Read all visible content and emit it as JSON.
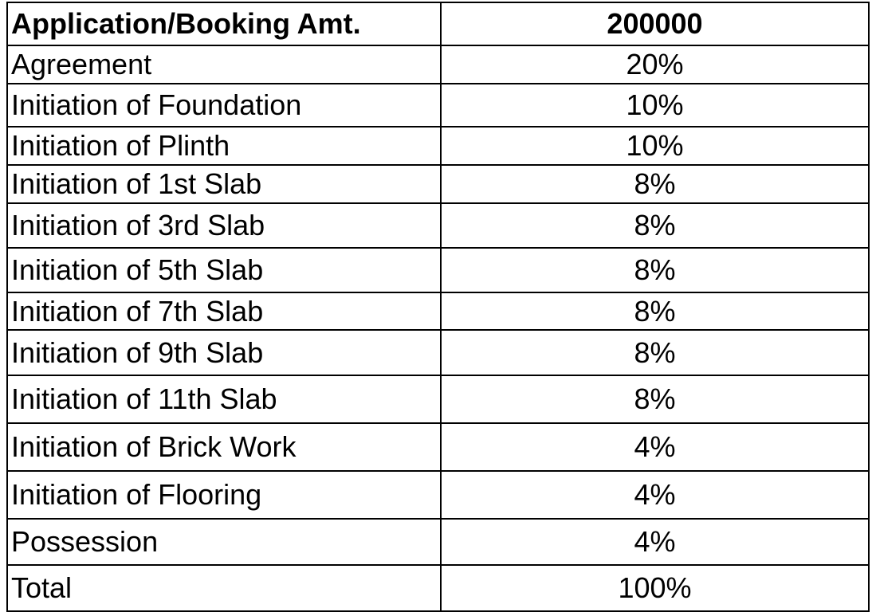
{
  "table": {
    "rows": [
      [
        "Application/Booking Amt.",
        "200000"
      ],
      [
        "Agreement",
        "20%"
      ],
      [
        "Initiation of Foundation",
        "10%"
      ],
      [
        "Initiation of Plinth",
        "10%"
      ],
      [
        "Initiation of 1st Slab",
        "8%"
      ],
      [
        "Initiation of 3rd Slab",
        "8%"
      ],
      [
        "Initiation of 5th Slab",
        "8%"
      ],
      [
        "Initiation of 7th Slab",
        "8%"
      ],
      [
        "Initiation of 9th Slab",
        "8%"
      ],
      [
        "Initiation of 11th Slab",
        "8%"
      ],
      [
        "Initiation of Brick Work",
        "4%"
      ],
      [
        "Initiation of Flooring",
        "4%"
      ],
      [
        "Possession",
        "4%"
      ],
      [
        "Total",
        "100%"
      ]
    ]
  }
}
